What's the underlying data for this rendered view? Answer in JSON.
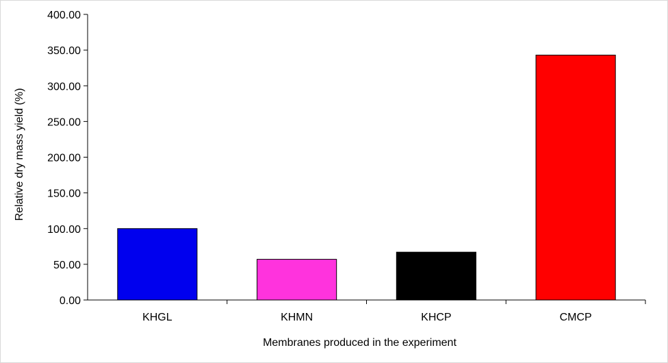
{
  "chart_data": {
    "type": "bar",
    "title": "",
    "xlabel": "Membranes produced in the experiment",
    "ylabel": "Relative dry mass yield (%)",
    "categories": [
      "KHGL",
      "KHMN",
      "KHCP",
      "CMCP"
    ],
    "values": [
      100.0,
      57.0,
      67.0,
      343.0
    ],
    "colors": [
      "#0000ee",
      "#ff33dd",
      "#000000",
      "#ff0000"
    ],
    "ylim": [
      0,
      400
    ],
    "yticks": [
      "0.00",
      "50.00",
      "100.00",
      "150.00",
      "200.00",
      "250.00",
      "300.00",
      "350.00",
      "400.00"
    ],
    "ytick_values": [
      0,
      50,
      100,
      150,
      200,
      250,
      300,
      350,
      400
    ],
    "grid": false,
    "legend": "none"
  }
}
